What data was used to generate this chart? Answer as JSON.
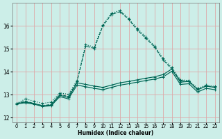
{
  "xlabel": "Humidex (Indice chaleur)",
  "bg_color": "#cceee8",
  "grid_color": "#dda8a8",
  "line_color": "#006655",
  "xlim": [
    -0.5,
    23.5
  ],
  "ylim": [
    11.8,
    17.0
  ],
  "xticks": [
    0,
    1,
    2,
    3,
    4,
    5,
    6,
    7,
    8,
    9,
    10,
    11,
    12,
    13,
    14,
    15,
    16,
    17,
    18,
    19,
    20,
    21,
    22,
    23
  ],
  "yticks": [
    12,
    13,
    14,
    15,
    16
  ],
  "curve1_x": [
    0,
    1,
    2,
    3,
    4,
    5,
    6,
    7,
    8,
    9,
    10,
    11,
    12,
    13,
    14,
    15,
    16,
    17,
    18,
    19,
    20,
    21,
    22,
    23
  ],
  "curve1_y": [
    12.62,
    12.82,
    12.72,
    12.62,
    12.68,
    13.08,
    13.02,
    13.62,
    15.18,
    15.08,
    16.05,
    16.55,
    16.68,
    16.32,
    15.88,
    15.52,
    15.12,
    14.58,
    14.18,
    13.65,
    13.62,
    13.28,
    13.42,
    13.36
  ],
  "curve1_style": "dotted",
  "curve2_x": [
    0,
    1,
    2,
    3,
    4,
    5,
    6,
    7,
    8,
    9,
    10,
    11,
    12,
    13,
    14,
    15,
    16,
    17,
    18,
    19,
    20,
    21,
    22,
    23
  ],
  "curve2_y": [
    12.62,
    12.72,
    12.62,
    12.52,
    12.58,
    13.02,
    12.92,
    13.58,
    15.12,
    15.02,
    16.0,
    16.5,
    16.62,
    16.28,
    15.82,
    15.46,
    15.08,
    14.52,
    14.12,
    13.62,
    13.58,
    13.22,
    13.38,
    13.32
  ],
  "curve2_style": "dashed",
  "curve3_x": [
    0,
    1,
    2,
    3,
    4,
    5,
    6,
    7,
    8,
    9,
    10,
    11,
    12,
    13,
    14,
    15,
    16,
    17,
    18,
    19,
    20,
    21,
    22,
    23
  ],
  "curve3_y": [
    12.62,
    12.68,
    12.62,
    12.52,
    12.55,
    12.98,
    12.88,
    13.52,
    13.45,
    13.38,
    13.32,
    13.42,
    13.52,
    13.58,
    13.65,
    13.72,
    13.78,
    13.88,
    14.12,
    13.55,
    13.58,
    13.22,
    13.38,
    13.32
  ],
  "curve3_style": "solid",
  "curve4_x": [
    0,
    1,
    2,
    3,
    4,
    5,
    6,
    7,
    8,
    9,
    10,
    11,
    12,
    13,
    14,
    15,
    16,
    17,
    18,
    19,
    20,
    21,
    22,
    23
  ],
  "curve4_y": [
    12.6,
    12.65,
    12.59,
    12.49,
    12.52,
    12.92,
    12.82,
    13.42,
    13.35,
    13.28,
    13.22,
    13.32,
    13.42,
    13.48,
    13.55,
    13.62,
    13.68,
    13.78,
    14.02,
    13.45,
    13.48,
    13.12,
    13.28,
    13.22
  ],
  "curve4_style": "solid"
}
